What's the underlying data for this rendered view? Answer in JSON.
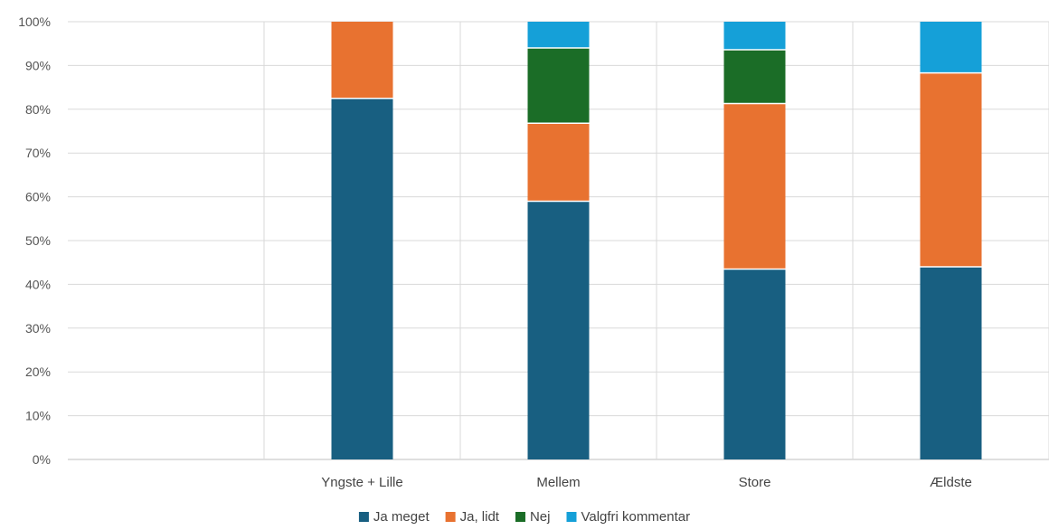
{
  "chart_data": {
    "type": "bar",
    "stacked": true,
    "percent": true,
    "categories": [
      "",
      "Yngste + Lille",
      "Mellem",
      "Store",
      "Ældste"
    ],
    "series": [
      {
        "name": "Ja meget",
        "color": "#185f81",
        "values": [
          0,
          82.5,
          59,
          43.5,
          44
        ]
      },
      {
        "name": "Ja, lidt",
        "color": "#e87230",
        "values": [
          0,
          17.5,
          17.8,
          37.8,
          44.3
        ]
      },
      {
        "name": "Nej",
        "color": "#1b6d27",
        "values": [
          0,
          0,
          17.2,
          12.3,
          0
        ]
      },
      {
        "name": "Valgfri kommentar",
        "color": "#15a0d8",
        "values": [
          0,
          0,
          6,
          6.4,
          11.7
        ]
      }
    ],
    "ylim": [
      0,
      100
    ],
    "yticks": [
      "0%",
      "10%",
      "20%",
      "30%",
      "40%",
      "50%",
      "60%",
      "70%",
      "80%",
      "90%",
      "100%"
    ],
    "grid": true,
    "legend": "bottom"
  }
}
